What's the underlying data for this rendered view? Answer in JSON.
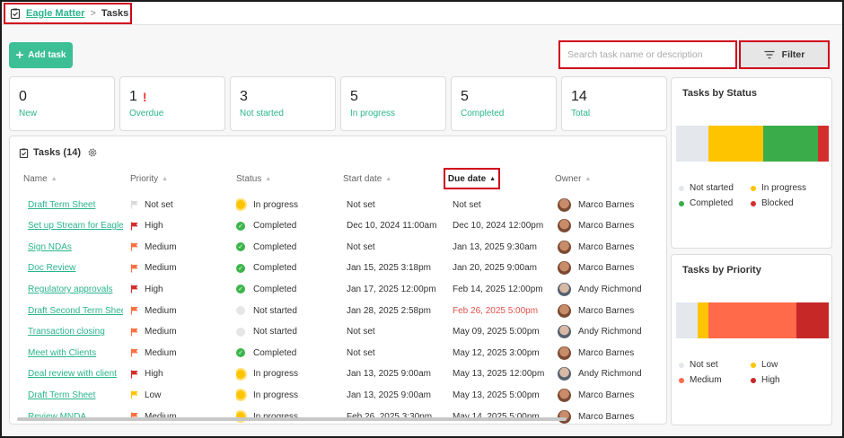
{
  "breadcrumb": {
    "project": "Eagle Matter",
    "separator": ">",
    "current": "Tasks"
  },
  "toolbar": {
    "add_label": "Add task",
    "search_placeholder": "Search task name or description",
    "filter_label": "Filter"
  },
  "stats": [
    {
      "value": "0",
      "label": "New"
    },
    {
      "value": "1",
      "label": "Overdue",
      "alert": "!"
    },
    {
      "value": "3",
      "label": "Not started"
    },
    {
      "value": "5",
      "label": "In progress"
    },
    {
      "value": "5",
      "label": "Completed"
    },
    {
      "value": "14",
      "label": "Total"
    }
  ],
  "tasks_panel": {
    "title": "Tasks (14)",
    "columns": {
      "name": "Name",
      "priority": "Priority",
      "status": "Status",
      "start": "Start date",
      "due": "Due date",
      "owner": "Owner"
    },
    "rows": [
      {
        "name": "Draft Term Sheet",
        "priority": "Not set",
        "priority_color": "#d9d9d9",
        "status": "In progress",
        "status_kind": "prog",
        "start": "Not set",
        "due": "Not set",
        "owner": "Marco Barnes",
        "avatar": "a"
      },
      {
        "name": "Set up Stream for Eagle Matter",
        "priority": "High",
        "priority_color": "#d32f2f",
        "status": "Completed",
        "status_kind": "done",
        "start": "Dec 10, 2024 11:00am",
        "due": "Dec 10, 2024 12:00pm",
        "owner": "Marco Barnes",
        "avatar": "a"
      },
      {
        "name": "Sign NDAs",
        "priority": "Medium",
        "priority_color": "#ff7043",
        "status": "Completed",
        "status_kind": "done",
        "start": "Not set",
        "due": "Jan 13, 2025 9:30am",
        "owner": "Marco Barnes",
        "avatar": "a"
      },
      {
        "name": "Doc Review",
        "priority": "Medium",
        "priority_color": "#ff7043",
        "status": "Completed",
        "status_kind": "done",
        "start": "Jan 15, 2025 3:18pm",
        "due": "Jan 20, 2025 9:00am",
        "owner": "Marco Barnes",
        "avatar": "a"
      },
      {
        "name": "Regulatory approvals",
        "priority": "High",
        "priority_color": "#d32f2f",
        "status": "Completed",
        "status_kind": "done",
        "start": "Jan 17, 2025 12:00pm",
        "due": "Feb 14, 2025 12:00pm",
        "owner": "Andy Richmond",
        "avatar": "b"
      },
      {
        "name": "Draft Second Term Sheet",
        "priority": "Medium",
        "priority_color": "#ff7043",
        "status": "Not started",
        "status_kind": "none",
        "start": "Jan 28, 2025 2:58pm",
        "due": "Feb 26, 2025 5:00pm",
        "due_overdue": true,
        "owner": "Marco Barnes",
        "avatar": "a"
      },
      {
        "name": "Transaction closing",
        "priority": "Medium",
        "priority_color": "#ff7043",
        "status": "Not started",
        "status_kind": "none",
        "start": "Not set",
        "due": "May 09, 2025 5:00pm",
        "owner": "Andy Richmond",
        "avatar": "b"
      },
      {
        "name": "Meet with Clients",
        "priority": "Medium",
        "priority_color": "#ff7043",
        "status": "Completed",
        "status_kind": "done",
        "start": "Not set",
        "due": "May 12, 2025 3:00pm",
        "owner": "Marco Barnes",
        "avatar": "a"
      },
      {
        "name": "Deal review with client",
        "priority": "High",
        "priority_color": "#d32f2f",
        "status": "In progress",
        "status_kind": "prog",
        "start": "Jan 13, 2025 9:00am",
        "due": "May 13, 2025 12:00pm",
        "owner": "Andy Richmond",
        "avatar": "b"
      },
      {
        "name": "Draft Term Sheet",
        "priority": "Low",
        "priority_color": "#ffc400",
        "status": "In progress",
        "status_kind": "prog",
        "start": "Jan 13, 2025 9:00am",
        "due": "May 13, 2025 5:00pm",
        "owner": "Marco Barnes",
        "avatar": "a"
      },
      {
        "name": "Review MNDA",
        "priority": "Medium",
        "priority_color": "#ff7043",
        "status": "In progress",
        "status_kind": "prog",
        "start": "Feb 26, 2025 3:30pm",
        "due": "May 14, 2025 5:00pm",
        "owner": "Marco Barnes",
        "avatar": "a"
      }
    ]
  },
  "status_card": {
    "title": "Tasks by Status",
    "segments": [
      {
        "label": "Not started",
        "value": 3,
        "color": "#e4e8ec"
      },
      {
        "label": "In progress",
        "value": 5,
        "color": "#ffc400"
      },
      {
        "label": "Completed",
        "value": 5,
        "color": "#3aad4a"
      },
      {
        "label": "Blocked",
        "value": 1,
        "color": "#d32f2f"
      }
    ]
  },
  "priority_card": {
    "title": "Tasks by Priority",
    "segments": [
      {
        "label": "Not set",
        "value": 2,
        "color": "#e4e8ec"
      },
      {
        "label": "Low",
        "value": 1,
        "color": "#ffc400"
      },
      {
        "label": "Medium",
        "value": 8,
        "color": "#ff6a4a"
      },
      {
        "label": "High",
        "value": 3,
        "color": "#c62828"
      }
    ]
  }
}
